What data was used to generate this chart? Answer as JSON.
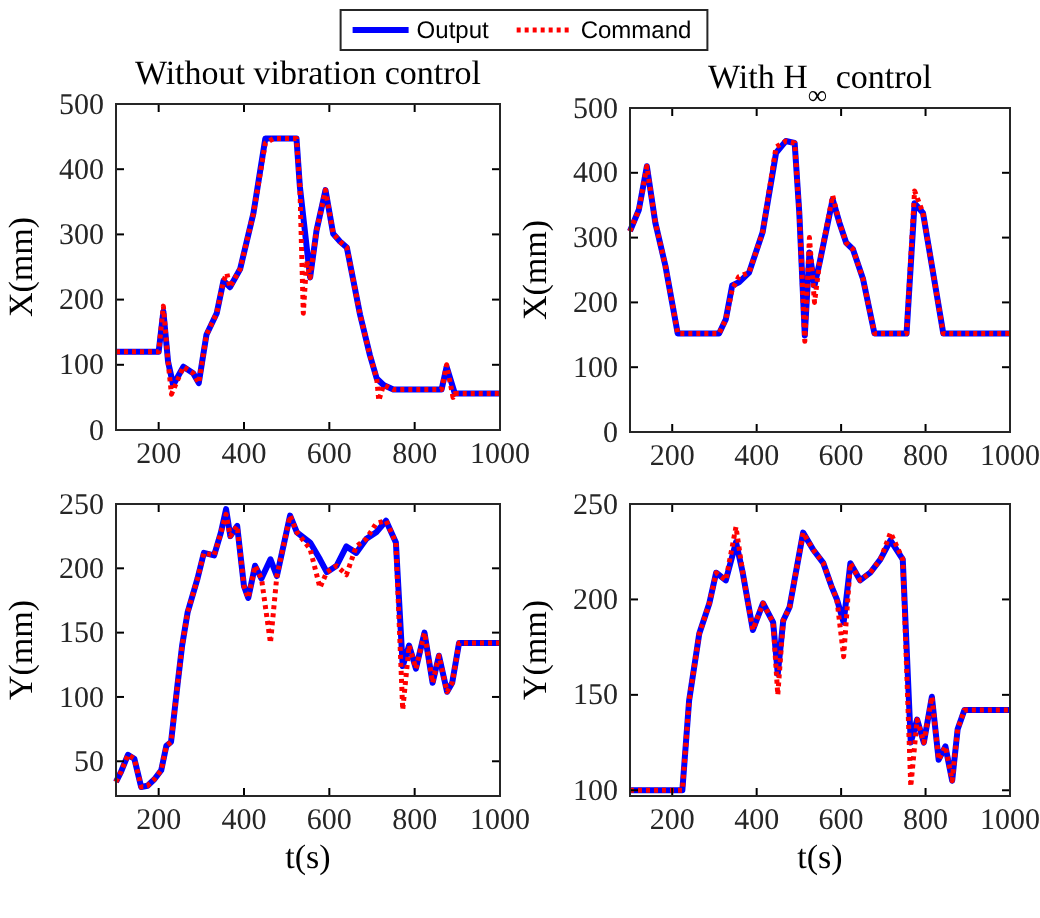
{
  "chart_data": [
    {
      "type": "line",
      "title": "Without vibration control",
      "ylabel": "X(mm)",
      "xlim": [
        100,
        1000
      ],
      "xticks": [
        200,
        400,
        600,
        800,
        1000
      ],
      "ylim": [
        0,
        500
      ],
      "yticks": [
        0,
        100,
        200,
        300,
        400,
        500
      ],
      "legend": "top",
      "grid": false,
      "series": [
        {
          "name": "Output",
          "color": "#0000ff",
          "line_style": "solid",
          "x": [
            100,
            200,
            211,
            222,
            234,
            258,
            281,
            294,
            312,
            336,
            352,
            367,
            391,
            422,
            450,
            469,
            523,
            531,
            547,
            555,
            570,
            591,
            609,
            625,
            641,
            672,
            695,
            711,
            727,
            750,
            863,
            875,
            894,
            1000
          ],
          "values": [
            120,
            120,
            182,
            105,
            69,
            97,
            87,
            72,
            146,
            179,
            229,
            219,
            247,
            332,
            447,
            447,
            447,
            373,
            280,
            234,
            306,
            368,
            301,
            289,
            280,
            177,
            115,
            79,
            69,
            62,
            62,
            97,
            56,
            56
          ]
        },
        {
          "name": "Command",
          "color": "#ff0000",
          "line_style": "dotted",
          "x": [
            100,
            200,
            211,
            222,
            230,
            258,
            281,
            294,
            312,
            336,
            352,
            360,
            367,
            391,
            422,
            450,
            469,
            523,
            531,
            539,
            547,
            555,
            570,
            591,
            609,
            625,
            641,
            672,
            695,
            711,
            716,
            727,
            750,
            863,
            875,
            890,
            894,
            1000
          ],
          "values": [
            120,
            120,
            190,
            105,
            55,
            97,
            87,
            72,
            146,
            179,
            229,
            240,
            219,
            247,
            332,
            440,
            447,
            447,
            373,
            179,
            260,
            234,
            306,
            368,
            301,
            289,
            280,
            177,
            115,
            79,
            45,
            69,
            62,
            62,
            100,
            50,
            56,
            56
          ]
        }
      ]
    },
    {
      "type": "line",
      "title": "With H$_{∞}$ control",
      "ylabel": "X(mm)",
      "xlim": [
        100,
        1000
      ],
      "xticks": [
        200,
        400,
        600,
        800,
        1000
      ],
      "ylim": [
        0,
        500
      ],
      "yticks": [
        0,
        100,
        200,
        300,
        400,
        500
      ],
      "grid": false,
      "series": [
        {
          "color": "#0000ff",
          "line_style": "solid",
          "x": [
            100,
            121,
            140,
            160,
            184,
            213,
            311,
            327,
            342,
            358,
            382,
            414,
            446,
            469,
            490,
            501,
            514,
            525,
            537,
            549,
            580,
            596,
            612,
            628,
            652,
            679,
            755,
            774,
            794,
            842,
            1000
          ],
          "values": [
            310,
            343,
            410,
            323,
            256,
            152,
            152,
            174,
            226,
            231,
            246,
            308,
            431,
            449,
            446,
            338,
            149,
            277,
            226,
            261,
            359,
            323,
            292,
            282,
            236,
            152,
            152,
            353,
            338,
            152,
            152
          ]
        },
        {
          "color": "#ff0000",
          "line_style": "dotted",
          "x": [
            100,
            121,
            140,
            160,
            184,
            213,
            311,
            327,
            342,
            358,
            382,
            414,
            446,
            469,
            490,
            501,
            514,
            525,
            537,
            549,
            580,
            596,
            612,
            628,
            652,
            679,
            755,
            774,
            794,
            842,
            1000
          ],
          "values": [
            310,
            343,
            410,
            323,
            256,
            152,
            152,
            174,
            220,
            240,
            246,
            308,
            440,
            449,
            446,
            338,
            140,
            300,
            200,
            261,
            365,
            323,
            292,
            282,
            236,
            152,
            152,
            372,
            338,
            152,
            152
          ]
        }
      ]
    },
    {
      "type": "line",
      "xlabel": "t(s)",
      "ylabel": "Y(mm)",
      "xlim": [
        100,
        1000
      ],
      "xticks": [
        200,
        400,
        600,
        800,
        1000
      ],
      "ylim": [
        23,
        250
      ],
      "yticks": [
        50,
        100,
        150,
        200,
        250
      ],
      "grid": false,
      "series": [
        {
          "color": "#0000ff",
          "line_style": "solid",
          "x": [
            100,
            112,
            128,
            143,
            159,
            174,
            190,
            206,
            218,
            229,
            244,
            255,
            268,
            291,
            306,
            330,
            346,
            358,
            368,
            384,
            400,
            410,
            426,
            441,
            462,
            477,
            508,
            524,
            555,
            578,
            594,
            617,
            640,
            663,
            687,
            710,
            733,
            756,
            772,
            787,
            803,
            823,
            842,
            857,
            876,
            888,
            904,
            1000
          ],
          "values": [
            34,
            42,
            55,
            52,
            30,
            31,
            36,
            43,
            62,
            65,
            109,
            140,
            166,
            192,
            212,
            210,
            228,
            246,
            225,
            233,
            186,
            177,
            202,
            192,
            207,
            194,
            241,
            228,
            220,
            207,
            197,
            202,
            217,
            212,
            223,
            228,
            237,
            220,
            124,
            140,
            122,
            150,
            111,
            132,
            104,
            111,
            142,
            142
          ]
        },
        {
          "color": "#ff0000",
          "line_style": "dotted",
          "x": [
            100,
            112,
            128,
            143,
            159,
            174,
            190,
            206,
            218,
            229,
            244,
            255,
            268,
            291,
            306,
            330,
            346,
            358,
            368,
            384,
            400,
            410,
            426,
            441,
            462,
            477,
            508,
            524,
            555,
            578,
            594,
            617,
            640,
            663,
            687,
            710,
            733,
            756,
            772,
            787,
            803,
            823,
            842,
            857,
            876,
            888,
            904,
            1000
          ],
          "values": [
            34,
            42,
            55,
            52,
            30,
            31,
            36,
            43,
            62,
            65,
            109,
            140,
            166,
            192,
            212,
            210,
            228,
            242,
            225,
            233,
            186,
            177,
            202,
            192,
            142,
            194,
            241,
            228,
            215,
            185,
            197,
            202,
            195,
            217,
            223,
            235,
            237,
            220,
            90,
            140,
            122,
            150,
            111,
            132,
            104,
            111,
            142,
            142
          ]
        }
      ]
    },
    {
      "type": "line",
      "xlabel": "t(s)",
      "ylabel": "Y(mm)",
      "xlim": [
        100,
        1000
      ],
      "xticks": [
        200,
        400,
        600,
        800,
        1000
      ],
      "ylim": [
        97,
        250
      ],
      "yticks": [
        100,
        150,
        200,
        250
      ],
      "grid": false,
      "series": [
        {
          "color": "#0000ff",
          "line_style": "solid",
          "x": [
            100,
            224,
            240,
            264,
            288,
            304,
            327,
            351,
            367,
            391,
            415,
            439,
            450,
            463,
            478,
            510,
            534,
            558,
            577,
            590,
            606,
            622,
            645,
            669,
            693,
            717,
            746,
            765,
            780,
            796,
            815,
            831,
            847,
            863,
            876,
            892,
            1000
          ],
          "values": [
            100,
            100,
            147,
            182,
            198,
            214,
            210,
            230,
            214,
            184,
            198,
            188,
            161,
            189,
            196,
            235,
            226,
            219,
            207,
            200,
            188,
            219,
            210,
            214,
            221,
            231,
            221,
            125,
            137,
            125,
            149,
            116,
            123,
            105,
            132,
            142,
            142
          ]
        },
        {
          "color": "#ff0000",
          "line_style": "dotted",
          "x": [
            100,
            224,
            240,
            264,
            288,
            304,
            327,
            351,
            367,
            391,
            415,
            439,
            450,
            463,
            478,
            510,
            534,
            558,
            577,
            590,
            606,
            622,
            645,
            669,
            693,
            717,
            746,
            765,
            780,
            796,
            815,
            831,
            847,
            863,
            876,
            892,
            1000
          ],
          "values": [
            100,
            100,
            147,
            182,
            198,
            214,
            210,
            238,
            214,
            184,
            198,
            188,
            150,
            189,
            196,
            235,
            226,
            219,
            207,
            200,
            170,
            219,
            210,
            214,
            221,
            235,
            221,
            102,
            137,
            125,
            149,
            116,
            123,
            105,
            132,
            142,
            142
          ]
        }
      ]
    }
  ]
}
